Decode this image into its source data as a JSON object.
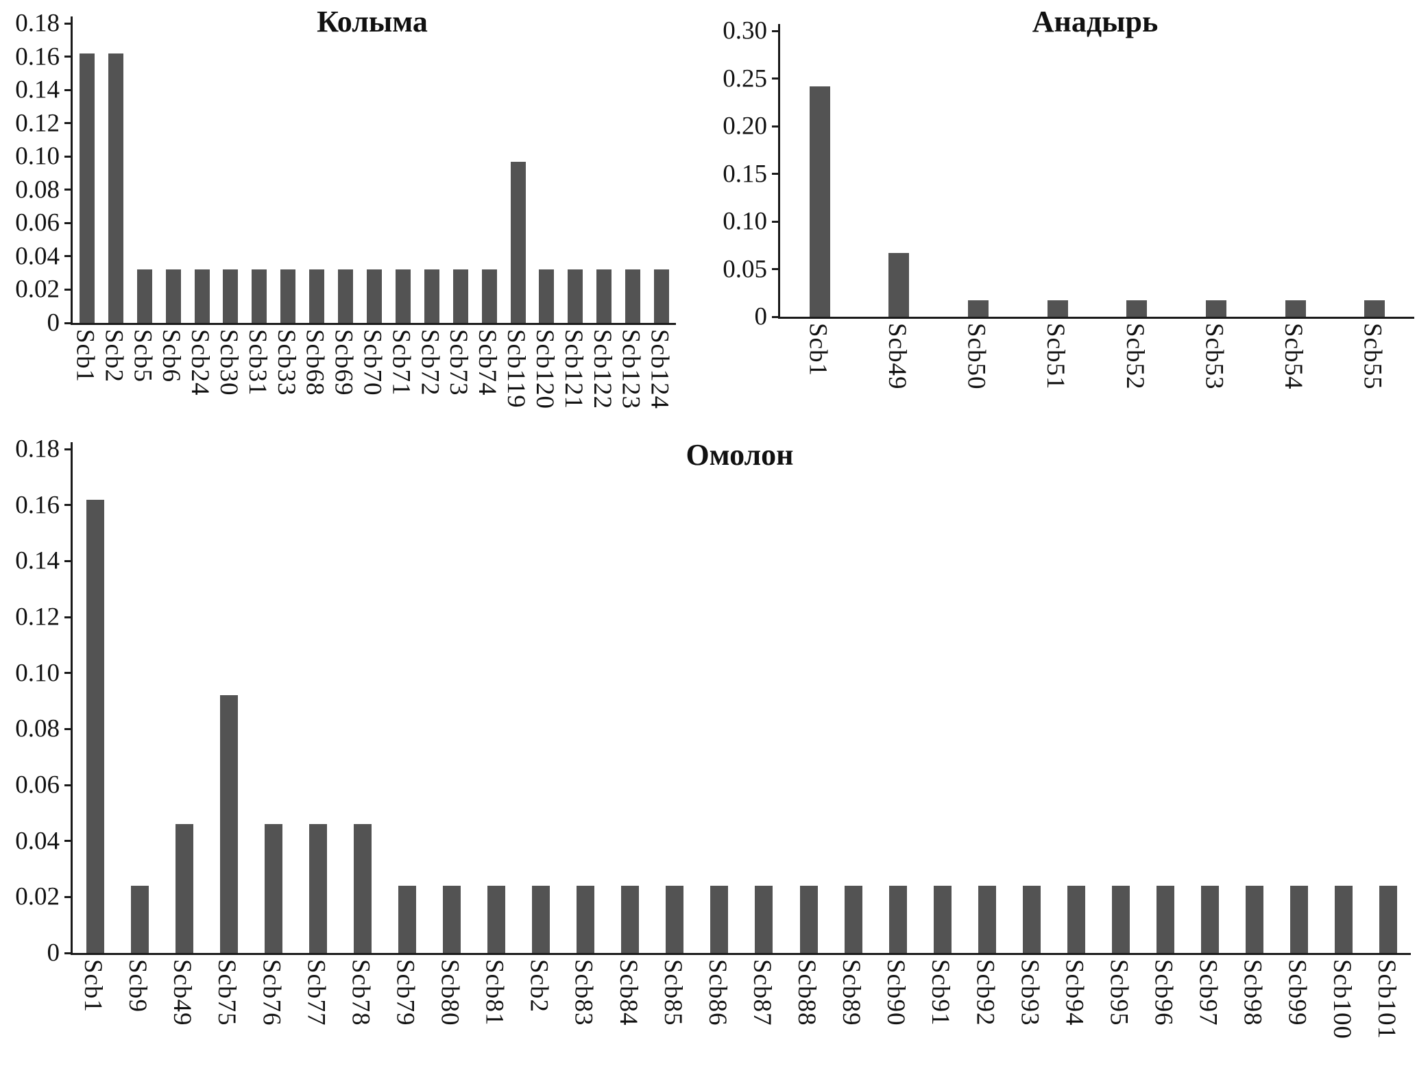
{
  "page": {
    "background": "#ffffff"
  },
  "chart_data": [
    {
      "type": "bar",
      "title": "Колыма",
      "categories": [
        "Scb1",
        "Scb2",
        "Scb5",
        "Scb6",
        "Scb24",
        "Scb30",
        "Scb31",
        "Scb33",
        "Scb68",
        "Scb69",
        "Scb70",
        "Scb71",
        "Scb72",
        "Scb73",
        "Scb74",
        "Scb119",
        "Scb120",
        "Scb121",
        "Scb122",
        "Scb123",
        "Scb124"
      ],
      "values": [
        0.162,
        0.162,
        0.032,
        0.032,
        0.032,
        0.032,
        0.032,
        0.032,
        0.032,
        0.032,
        0.032,
        0.032,
        0.032,
        0.032,
        0.032,
        0.097,
        0.032,
        0.032,
        0.032,
        0.032,
        0.032
      ],
      "xlabel": "",
      "ylabel": "",
      "ylim": [
        0,
        0.18
      ],
      "ytick_labels": [
        "0",
        "0.02",
        "0.04",
        "0.06",
        "0.08",
        "0.10",
        "0.12",
        "0.14",
        "0.16",
        "0.18"
      ],
      "grid": false,
      "legend": false,
      "bar_color": "#535353",
      "axis_color": "#1a1a1a",
      "text_color": "#111111"
    },
    {
      "type": "bar",
      "title": "Анадырь",
      "categories": [
        "Scb1",
        "Scb49",
        "Scb50",
        "Scb51",
        "Scb52",
        "Scb53",
        "Scb54",
        "Scb55"
      ],
      "values": [
        0.242,
        0.067,
        0.017,
        0.017,
        0.017,
        0.017,
        0.017,
        0.017
      ],
      "xlabel": "",
      "ylabel": "",
      "ylim": [
        0,
        0.3
      ],
      "ytick_labels": [
        "0",
        "0.05",
        "0.10",
        "0.15",
        "0.20",
        "0.25",
        "0.30"
      ],
      "grid": false,
      "legend": false,
      "bar_color": "#535353",
      "axis_color": "#1a1a1a",
      "text_color": "#111111"
    },
    {
      "type": "bar",
      "title": "Омолон",
      "categories": [
        "Scb1",
        "Scb9",
        "Scb49",
        "Scb75",
        "Scb76",
        "Scb77",
        "Scb78",
        "Scb79",
        "Scb80",
        "Scb81",
        "Scb2",
        "Scb83",
        "Scb84",
        "Scb85",
        "Scb86",
        "Scb87",
        "Scb88",
        "Scb89",
        "Scb90",
        "Scb91",
        "Scb92",
        "Scb93",
        "Scb94",
        "Scb95",
        "Scb96",
        "Scb97",
        "Scb98",
        "Scb99",
        "Scb100",
        "Scb101"
      ],
      "values": [
        0.162,
        0.024,
        0.046,
        0.092,
        0.046,
        0.046,
        0.046,
        0.024,
        0.024,
        0.024,
        0.024,
        0.024,
        0.024,
        0.024,
        0.024,
        0.024,
        0.024,
        0.024,
        0.024,
        0.024,
        0.024,
        0.024,
        0.024,
        0.024,
        0.024,
        0.024,
        0.024,
        0.024,
        0.024,
        0.024
      ],
      "xlabel": "",
      "ylabel": "",
      "ylim": [
        0,
        0.18
      ],
      "ytick_labels": [
        "0",
        "0.02",
        "0.04",
        "0.06",
        "0.08",
        "0.10",
        "0.12",
        "0.14",
        "0.16",
        "0.18"
      ],
      "grid": false,
      "legend": false,
      "bar_color": "#535353",
      "axis_color": "#1a1a1a",
      "text_color": "#111111"
    }
  ]
}
